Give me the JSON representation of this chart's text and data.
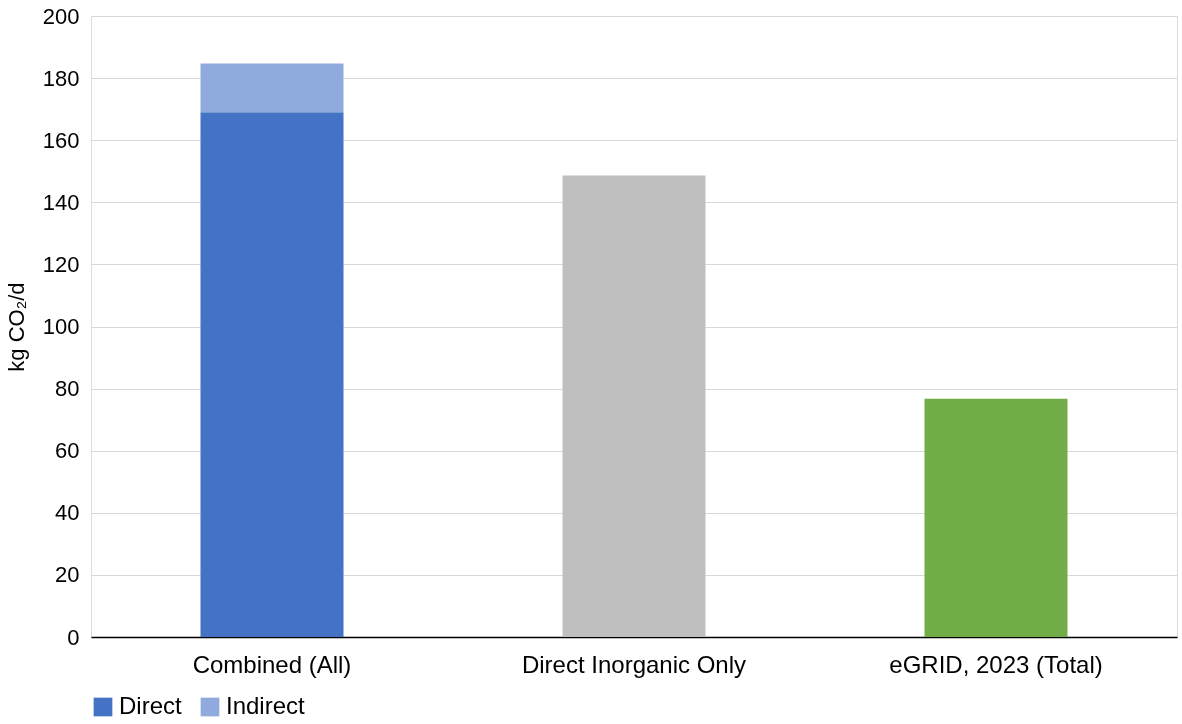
{
  "chart_data": {
    "type": "bar",
    "stacked": true,
    "ylabel": "kg CO₂/d",
    "categories": [
      "Combined (All)",
      "Direct Inorganic Only",
      "eGRID, 2023 (Total)"
    ],
    "series": [
      {
        "name": "Direct",
        "color": "#4472c4",
        "colors": [
          "#4472c4",
          "#bfbfbf",
          "#70ad47"
        ],
        "values": [
          169,
          148.6,
          76.7
        ]
      },
      {
        "name": "Indirect",
        "color": "#8faadc",
        "values": [
          15.7,
          null,
          null
        ]
      }
    ],
    "ylim": [
      0,
      200
    ],
    "yticks": [
      0,
      20,
      40,
      60,
      80,
      100,
      120,
      140,
      160,
      180,
      200
    ],
    "grid": "y",
    "legend": "bottom"
  }
}
